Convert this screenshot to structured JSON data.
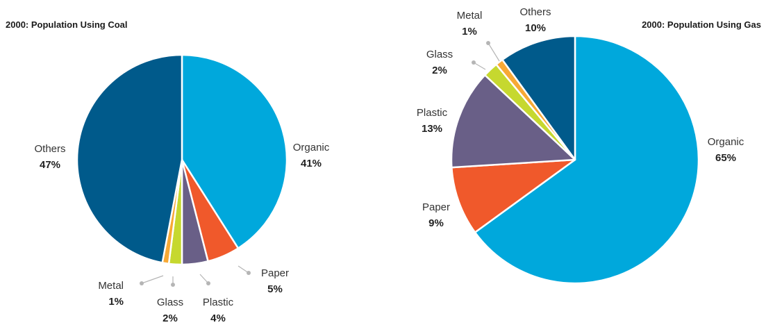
{
  "chart_data": [
    {
      "type": "pie",
      "title": "2000: Population Using Coal",
      "slices": [
        {
          "label": "Organic",
          "value": 41,
          "value_label": "41%",
          "color": "#00A8DC"
        },
        {
          "label": "Paper",
          "value": 5,
          "value_label": "5%",
          "color": "#F0592B"
        },
        {
          "label": "Plastic",
          "value": 4,
          "value_label": "4%",
          "color": "#695F87"
        },
        {
          "label": "Glass",
          "value": 2,
          "value_label": "2%",
          "color": "#C6D82F"
        },
        {
          "label": "Metal",
          "value": 1,
          "value_label": "1%",
          "color": "#F7A935"
        },
        {
          "label": "Others",
          "value": 47,
          "value_label": "47%",
          "color": "#005A8B"
        }
      ]
    },
    {
      "type": "pie",
      "title": "2000: Population Using Gas",
      "slices": [
        {
          "label": "Organic",
          "value": 65,
          "value_label": "65%",
          "color": "#00A8DC"
        },
        {
          "label": "Paper",
          "value": 9,
          "value_label": "9%",
          "color": "#F0592B"
        },
        {
          "label": "Plastic",
          "value": 13,
          "value_label": "13%",
          "color": "#695F87"
        },
        {
          "label": "Glass",
          "value": 2,
          "value_label": "2%",
          "color": "#C6D82F"
        },
        {
          "label": "Metal",
          "value": 1,
          "value_label": "1%",
          "color": "#F7A935"
        },
        {
          "label": "Others",
          "value": 10,
          "value_label": "10%",
          "color": "#005A8B"
        }
      ]
    }
  ]
}
